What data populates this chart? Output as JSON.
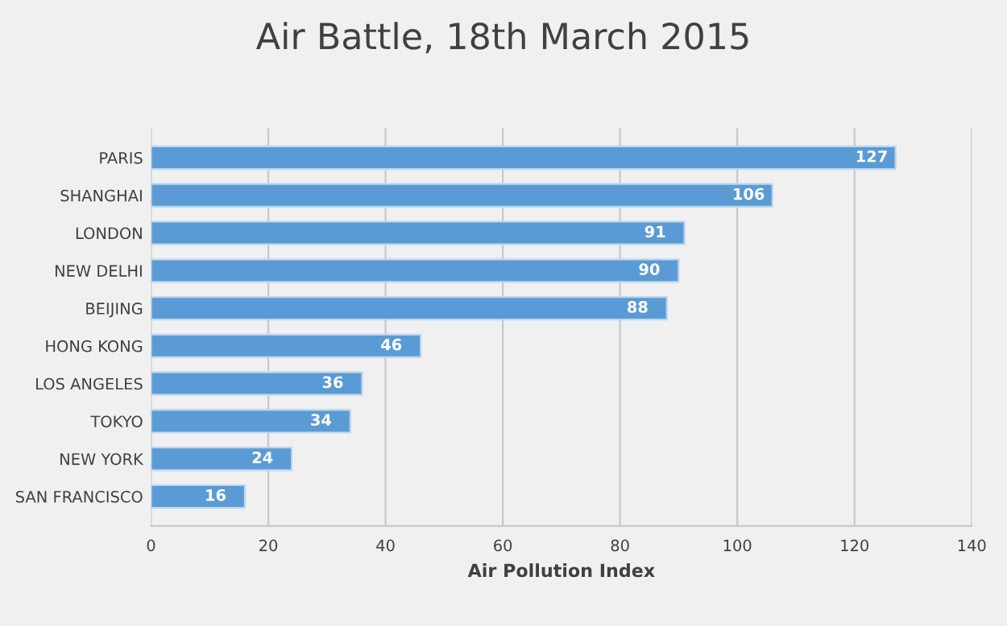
{
  "chart_data": {
    "type": "bar",
    "orientation": "horizontal",
    "title": "Air Battle, 18th March 2015",
    "xlabel": "Air Pollution Index",
    "categories": [
      "PARIS",
      "SHANGHAI",
      "LONDON",
      "NEW DELHI",
      "BEIJING",
      "HONG KONG",
      "LOS ANGELES",
      "TOKYO",
      "NEW YORK",
      "SAN FRANCISCO"
    ],
    "values": [
      127,
      106,
      91,
      90,
      88,
      46,
      36,
      34,
      24,
      16
    ],
    "color": "#5b9bd5",
    "xlim": [
      0,
      140
    ],
    "xticks": [
      0,
      20,
      40,
      60,
      80,
      100,
      120,
      140
    ],
    "grid": "x",
    "data_labels": true
  }
}
